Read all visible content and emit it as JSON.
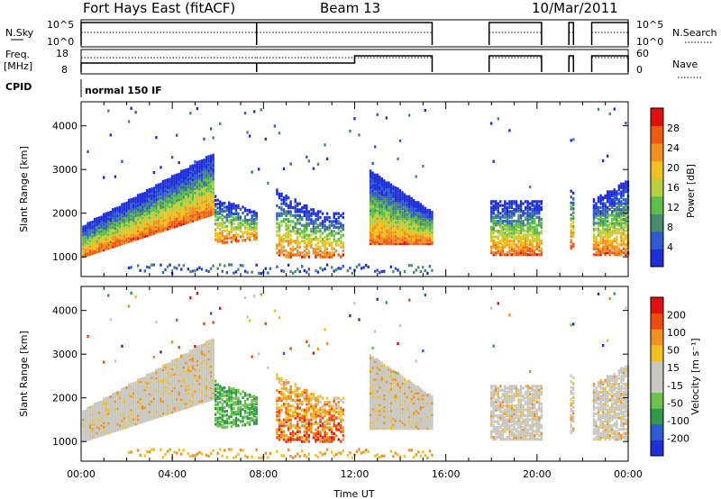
{
  "header": {
    "station": "Fort Hays East (fitACF)",
    "beam": "Beam 13",
    "date": "10/Mar/2011"
  },
  "colors": {
    "power_scale": [
      "#1e2ed8",
      "#2e5bd0",
      "#4a8a6e",
      "#5cbf4a",
      "#b8d040",
      "#f2c01e",
      "#f29020",
      "#f05a10",
      "#e01010"
    ],
    "velocity_scale": [
      "#e01010",
      "#f04a10",
      "#f29020",
      "#f2c01e",
      "#c8c8c0",
      "#c8c8c0",
      "#6cc24a",
      "#2e9a4a",
      "#2e5bd0",
      "#1e2ed8"
    ],
    "ground_scatter": "#c8c8c0"
  },
  "chart_data": [
    {
      "type": "line",
      "name": "nsky-nsearch-panel",
      "left_label": "N.Sky",
      "right_label": "N.Search",
      "left_ticks": [
        "10^5",
        "10^0"
      ],
      "right_ticks": [
        "10^5",
        "10^0"
      ],
      "segments_hours": [
        [
          0.0,
          7.7
        ],
        [
          7.7,
          15.4
        ],
        [
          17.9,
          20.2
        ],
        [
          21.4,
          21.6
        ],
        [
          22.4,
          24.0
        ]
      ]
    },
    {
      "type": "line",
      "name": "freq-nave-panel",
      "left_label_line1": "Freq.",
      "left_label_line2": "[MHz]",
      "left_ticks": [
        "18",
        "8"
      ],
      "right_label": "Nave",
      "right_ticks": [
        "60",
        "0"
      ],
      "freq_step_hour": 12.0
    },
    {
      "type": "table",
      "name": "cpid-strip",
      "label": "CPID",
      "value": "normal 150 IF"
    },
    {
      "type": "heatmap",
      "name": "power-panel",
      "ylabel": "Slant Range [km]",
      "y_ticks": [
        1000,
        2000,
        3000,
        4000
      ],
      "ylim": [
        550,
        4550
      ],
      "xlim": [
        0,
        24
      ],
      "colorbar_label": "Power [dB]",
      "colorbar_ticks": [
        "28",
        "24",
        "20",
        "16",
        "12",
        "8",
        "4"
      ],
      "colorbar_range": [
        0,
        32
      ]
    },
    {
      "type": "heatmap",
      "name": "velocity-panel",
      "ylabel": "Slant Range [km]",
      "y_ticks": [
        1000,
        2000,
        3000,
        4000
      ],
      "ylim": [
        550,
        4550
      ],
      "xlim": [
        0,
        24
      ],
      "xlabel": "Time UT",
      "x_ticks": [
        "00:00",
        "04:00",
        "08:00",
        "12:00",
        "16:00",
        "20:00",
        "00:00"
      ],
      "colorbar_label": "Velocity [m s⁻¹]",
      "colorbar_ticks": [
        "200",
        "100",
        "50",
        "15",
        "-15",
        "-50",
        "-100",
        "-200"
      ]
    }
  ]
}
